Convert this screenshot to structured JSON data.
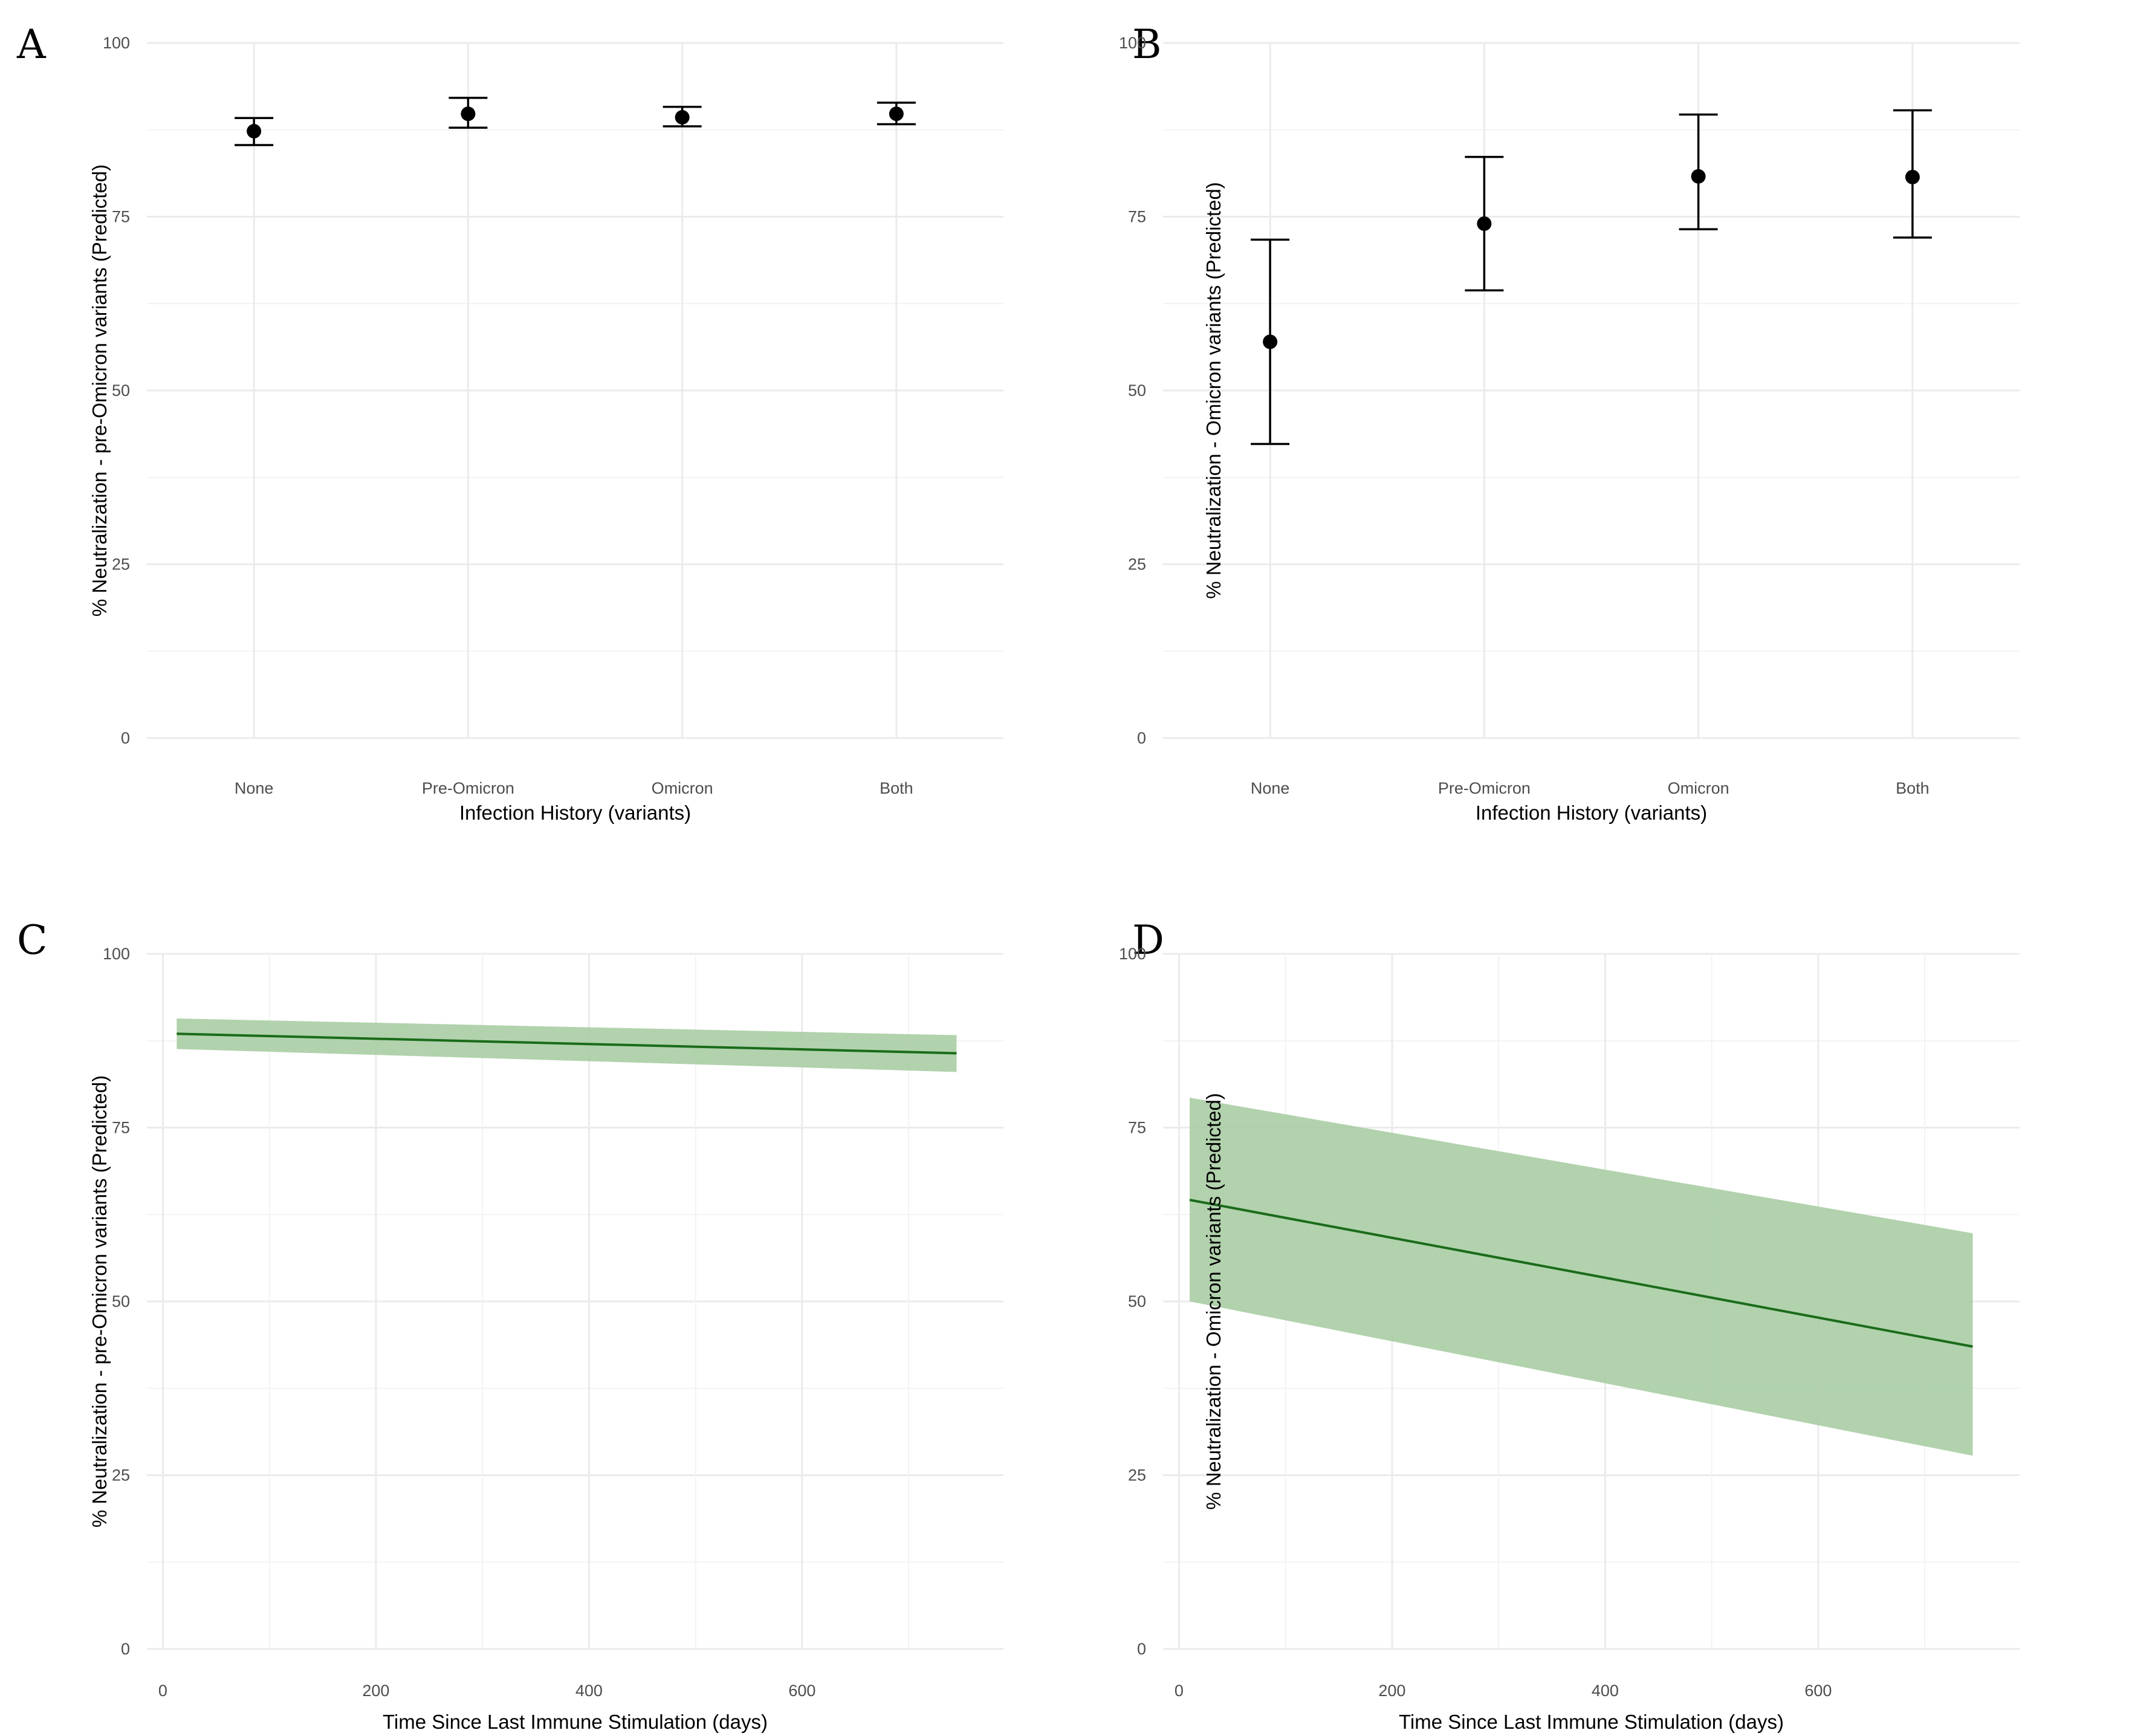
{
  "chart_data": [
    {
      "panel": "A",
      "type": "scatter",
      "subtype": "point-errorbar",
      "categories": [
        "None",
        "Pre-Omicron",
        "Omicron",
        "Both"
      ],
      "values": [
        87.3,
        89.8,
        89.3,
        89.8
      ],
      "lower": [
        85.3,
        87.8,
        88.0,
        88.3
      ],
      "upper": [
        89.2,
        92.1,
        90.8,
        91.4
      ],
      "xlabel": "Infection History (variants)",
      "ylabel": "% Neutralization - pre-Omicron variants (Predicted)",
      "ylim": [
        0,
        100
      ],
      "yticks": [
        0,
        25,
        50,
        75,
        100
      ],
      "ytick_labels": [
        "0",
        "25",
        "50",
        "75",
        "100"
      ],
      "grid": true
    },
    {
      "panel": "B",
      "type": "scatter",
      "subtype": "point-errorbar",
      "categories": [
        "None",
        "Pre-Omicron",
        "Omicron",
        "Both"
      ],
      "values": [
        57.0,
        74.0,
        80.8,
        80.7
      ],
      "lower": [
        42.3,
        64.4,
        73.2,
        72.0
      ],
      "upper": [
        71.7,
        83.6,
        89.7,
        90.3
      ],
      "xlabel": "Infection History (variants)",
      "ylabel": "% Neutralization - Omicron variants (Predicted)",
      "ylim": [
        0,
        100
      ],
      "yticks": [
        0,
        25,
        50,
        75,
        100
      ],
      "ytick_labels": [
        "0",
        "25",
        "50",
        "75",
        "100"
      ],
      "grid": true
    },
    {
      "panel": "C",
      "type": "line",
      "subtype": "line-ribbon",
      "x": [
        13,
        745
      ],
      "y": [
        88.5,
        85.7
      ],
      "lower": [
        86.3,
        83.0
      ],
      "upper": [
        90.7,
        88.3
      ],
      "xlabel": "Time Since Last Immune Stimulation (days)",
      "ylabel": "% Neutralization - pre-Omicron variants (Predicted)",
      "xlim": [
        -15,
        789
      ],
      "ylim": [
        0,
        100
      ],
      "xticks": [
        0,
        200,
        400,
        600
      ],
      "xtick_labels": [
        "0",
        "200",
        "400",
        "600"
      ],
      "yticks": [
        0,
        25,
        50,
        75,
        100
      ],
      "ytick_labels": [
        "0",
        "25",
        "50",
        "75",
        "100"
      ],
      "line_color": "#1a6b1a",
      "ribbon_color": "#a6cca0",
      "grid": true
    },
    {
      "panel": "D",
      "type": "line",
      "subtype": "line-ribbon",
      "x": [
        10,
        745
      ],
      "y": [
        64.6,
        43.5
      ],
      "lower": [
        50.0,
        27.8
      ],
      "upper": [
        79.3,
        59.8
      ],
      "xlabel": "Time Since Last Immune Stimulation (days)",
      "ylabel": "% Neutralization - Omicron variants (Predicted)",
      "xlim": [
        -15,
        789
      ],
      "ylim": [
        0,
        100
      ],
      "xticks": [
        0,
        200,
        400,
        600
      ],
      "xtick_labels": [
        "0",
        "200",
        "400",
        "600"
      ],
      "yticks": [
        0,
        25,
        50,
        75,
        100
      ],
      "ytick_labels": [
        "0",
        "25",
        "50",
        "75",
        "100"
      ],
      "line_color": "#1a6b1a",
      "ribbon_color": "#a6cca0",
      "grid": true
    }
  ]
}
